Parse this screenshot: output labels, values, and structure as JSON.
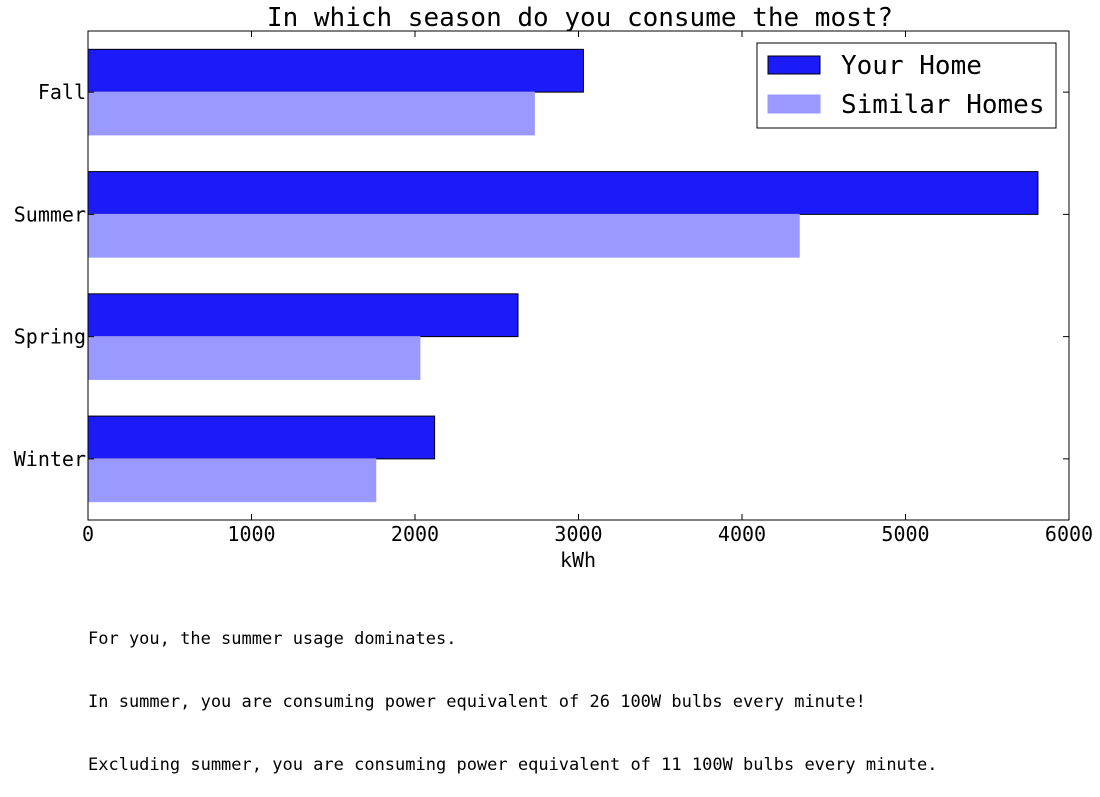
{
  "chart_data": {
    "type": "bar",
    "orientation": "horizontal",
    "title": "In which season do you consume the most?",
    "xlabel": "kWh",
    "ylabel": "",
    "categories": [
      "Fall",
      "Summer",
      "Spring",
      "Winter"
    ],
    "series": [
      {
        "name": "Your Home",
        "color": "#1b1bf9",
        "values": [
          3030,
          5810,
          2630,
          2120
        ]
      },
      {
        "name": "Similar Homes",
        "color": "#9999ff",
        "values": [
          2730,
          4350,
          2030,
          1760
        ]
      }
    ],
    "xlim": [
      0,
      6000
    ],
    "xticks": [
      0,
      1000,
      2000,
      3000,
      4000,
      5000,
      6000
    ],
    "grid": false,
    "legend_position": "top-right"
  },
  "notes": [
    "For you, the summer usage dominates.",
    "In summer, you are consuming power equivalent of 26 100W bulbs every minute!",
    "Excluding summer, you are consuming power equivalent of 11 100W bulbs every minute."
  ]
}
